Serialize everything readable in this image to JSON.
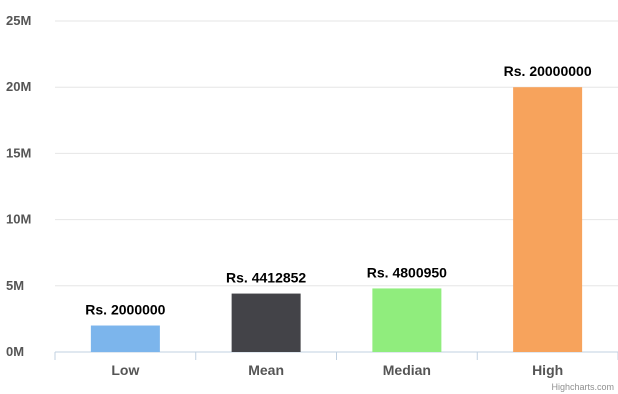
{
  "chart_data": {
    "type": "bar",
    "categories": [
      "Low",
      "Mean",
      "Median",
      "High"
    ],
    "values": [
      2000000,
      4412852,
      4800950,
      20000000
    ],
    "data_labels": [
      "Rs. 2000000",
      "Rs. 4412852",
      "Rs. 4800950",
      "Rs. 20000000"
    ],
    "colors": [
      "#7cb5ec",
      "#434348",
      "#90ed7d",
      "#f7a35c"
    ],
    "ylim": [
      0,
      25000000
    ],
    "yticks": [
      0,
      5000000,
      10000000,
      15000000,
      20000000,
      25000000
    ],
    "ytick_labels": [
      "0M",
      "5M",
      "10M",
      "15M",
      "20M",
      "25M"
    ],
    "grid": true,
    "legend": "none",
    "credit": "Highcharts.com"
  }
}
